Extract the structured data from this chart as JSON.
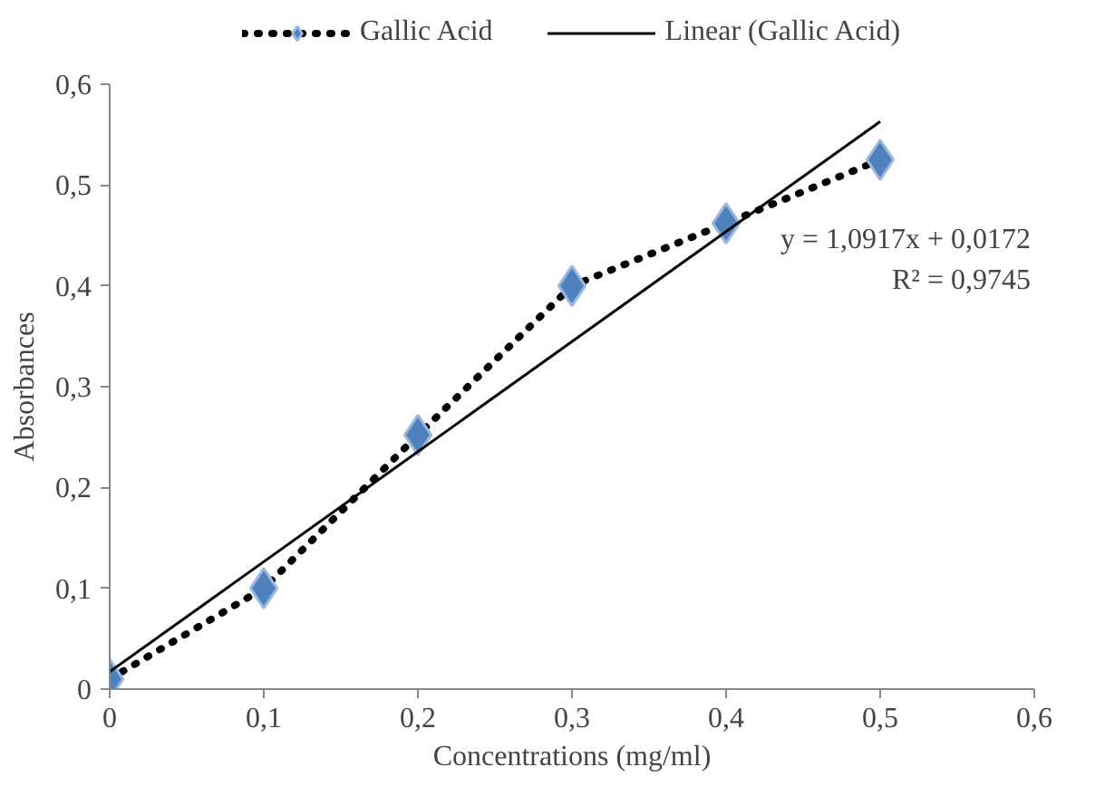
{
  "chart_data": {
    "type": "line",
    "xlabel": "Concentrations (mg/ml)",
    "ylabel": "Absorbances",
    "x": [
      0,
      0.1,
      0.2,
      0.3,
      0.4,
      0.5
    ],
    "series": [
      {
        "name": "Gallic Acid",
        "color": "#4f81bd",
        "values": [
          0.01,
          0.1,
          0.252,
          0.4,
          0.462,
          0.525
        ],
        "marker": "diamond",
        "line_style": "dotted"
      },
      {
        "name": "Linear (Gallic Acid)",
        "color": "#000000",
        "x": [
          0,
          0.5
        ],
        "values": [
          0.0172,
          0.563
        ],
        "marker": "none",
        "line_style": "solid"
      }
    ],
    "xlim": [
      0,
      0.6
    ],
    "ylim": [
      0,
      0.6
    ],
    "xticks": [
      0,
      {
        "value": 0.1,
        "label": "0,1"
      },
      {
        "value": 0.2,
        "label": "0,2"
      },
      {
        "value": 0.3,
        "label": "0,3"
      },
      {
        "value": 0.4,
        "label": "0,4"
      },
      {
        "value": 0.5,
        "label": "0,5"
      },
      {
        "value": 0.6,
        "label": "0,6"
      }
    ],
    "yticks": [
      0,
      {
        "value": 0.1,
        "label": "0,1"
      },
      {
        "value": 0.2,
        "label": "0,2"
      },
      {
        "value": 0.3,
        "label": "0,3"
      },
      {
        "value": 0.4,
        "label": "0,4"
      },
      {
        "value": 0.5,
        "label": "0,5"
      },
      {
        "value": 0.6,
        "label": "0,6"
      }
    ],
    "annotations": [
      "y = 1,0917x + 0,0172",
      "R² = 0,9745"
    ],
    "grid": false,
    "legend": "top"
  }
}
